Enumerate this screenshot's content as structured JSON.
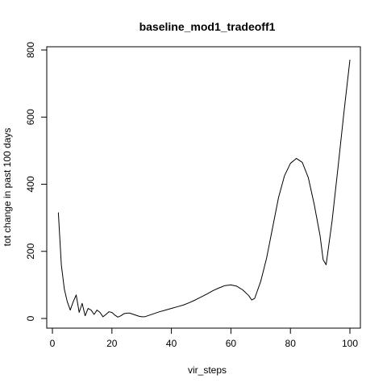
{
  "chart_data": {
    "type": "line",
    "title": "baseline_mod1_tradeoff1",
    "xlabel": "vir_steps",
    "ylabel": "tot change in past 100 days",
    "xlim": [
      0,
      100
    ],
    "ylim": [
      0,
      800
    ],
    "xticks": [
      0,
      20,
      40,
      60,
      80,
      100
    ],
    "yticks": [
      0,
      200,
      400,
      600,
      800
    ],
    "grid": false,
    "legend": "none",
    "line_color": "#000000",
    "series": [
      {
        "x": [
          2,
          3,
          4,
          5,
          6,
          7,
          8,
          9,
          10,
          11,
          12,
          13,
          14,
          15,
          16,
          17,
          18,
          19,
          20,
          21,
          22,
          23,
          24,
          25,
          26,
          27,
          28,
          29,
          30,
          31,
          32,
          34,
          36,
          38,
          40,
          42,
          44,
          46,
          48,
          50,
          52,
          54,
          56,
          58,
          60,
          62,
          64,
          66,
          67,
          68,
          70,
          72,
          74,
          76,
          78,
          80,
          82,
          84,
          86,
          88,
          90,
          91,
          92,
          94,
          96,
          98,
          100
        ],
        "y": [
          315,
          160,
          88,
          50,
          25,
          50,
          70,
          18,
          45,
          8,
          30,
          25,
          12,
          25,
          18,
          5,
          12,
          20,
          18,
          10,
          4,
          8,
          14,
          16,
          16,
          13,
          10,
          7,
          5,
          5,
          8,
          14,
          20,
          25,
          30,
          35,
          40,
          47,
          55,
          64,
          73,
          83,
          91,
          98,
          100,
          96,
          85,
          68,
          55,
          60,
          110,
          180,
          270,
          360,
          425,
          462,
          477,
          465,
          420,
          340,
          245,
          175,
          160,
          290,
          450,
          615,
          770
        ]
      }
    ]
  }
}
